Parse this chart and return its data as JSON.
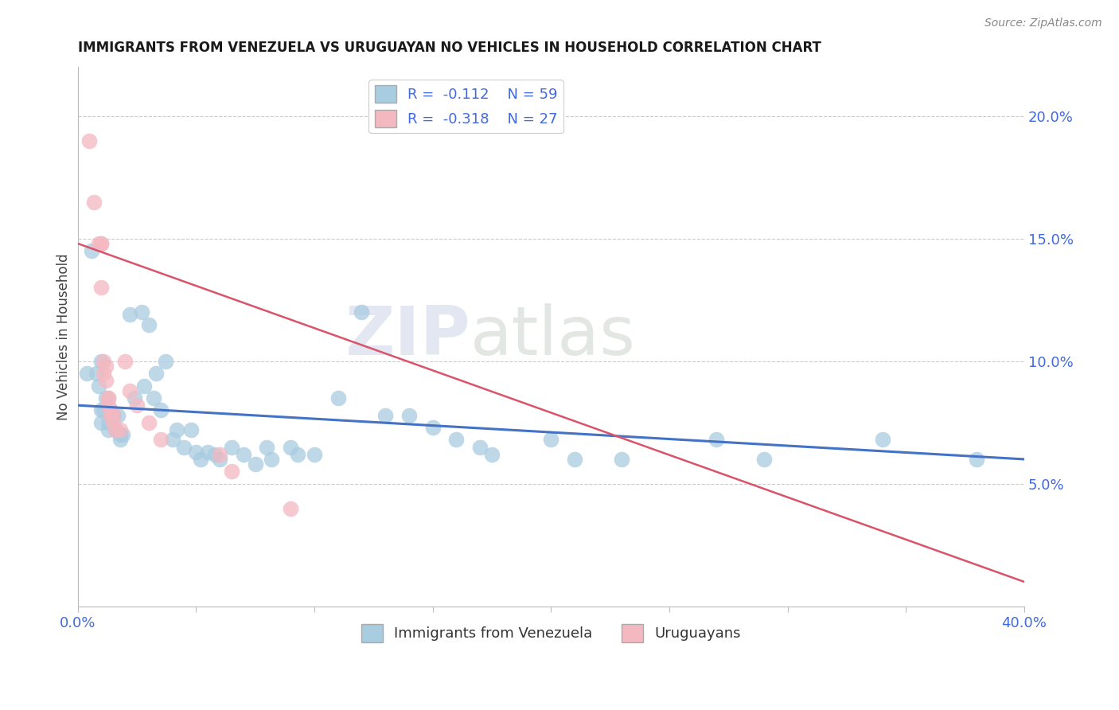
{
  "title": "IMMIGRANTS FROM VENEZUELA VS URUGUAYAN NO VEHICLES IN HOUSEHOLD CORRELATION CHART",
  "source": "Source: ZipAtlas.com",
  "ylabel": "No Vehicles in Household",
  "right_yticks": [
    "5.0%",
    "10.0%",
    "15.0%",
    "20.0%"
  ],
  "right_ytick_vals": [
    0.05,
    0.1,
    0.15,
    0.2
  ],
  "legend1_label": "Immigrants from Venezuela",
  "legend2_label": "Uruguayans",
  "r1": -0.112,
  "n1": 59,
  "r2": -0.318,
  "n2": 27,
  "blue_color": "#a8cce0",
  "pink_color": "#f4b8c1",
  "blue_line_color": "#4472c4",
  "pink_line_color": "#d9536a",
  "title_color": "#1a1a1a",
  "axis_label_color": "#4169e1",
  "watermark_zip": "ZIP",
  "watermark_atlas": "atlas",
  "blue_scatter": [
    [
      0.004,
      0.095
    ],
    [
      0.006,
      0.145
    ],
    [
      0.008,
      0.095
    ],
    [
      0.009,
      0.09
    ],
    [
      0.01,
      0.1
    ],
    [
      0.01,
      0.08
    ],
    [
      0.01,
      0.075
    ],
    [
      0.011,
      0.08
    ],
    [
      0.012,
      0.085
    ],
    [
      0.013,
      0.075
    ],
    [
      0.013,
      0.072
    ],
    [
      0.015,
      0.078
    ],
    [
      0.015,
      0.078
    ],
    [
      0.016,
      0.072
    ],
    [
      0.017,
      0.078
    ],
    [
      0.018,
      0.07
    ],
    [
      0.018,
      0.068
    ],
    [
      0.019,
      0.07
    ],
    [
      0.022,
      0.119
    ],
    [
      0.024,
      0.085
    ],
    [
      0.027,
      0.12
    ],
    [
      0.028,
      0.09
    ],
    [
      0.03,
      0.115
    ],
    [
      0.032,
      0.085
    ],
    [
      0.033,
      0.095
    ],
    [
      0.035,
      0.08
    ],
    [
      0.037,
      0.1
    ],
    [
      0.04,
      0.068
    ],
    [
      0.042,
      0.072
    ],
    [
      0.045,
      0.065
    ],
    [
      0.048,
      0.072
    ],
    [
      0.05,
      0.063
    ],
    [
      0.052,
      0.06
    ],
    [
      0.055,
      0.063
    ],
    [
      0.058,
      0.062
    ],
    [
      0.06,
      0.06
    ],
    [
      0.065,
      0.065
    ],
    [
      0.07,
      0.062
    ],
    [
      0.075,
      0.058
    ],
    [
      0.08,
      0.065
    ],
    [
      0.082,
      0.06
    ],
    [
      0.09,
      0.065
    ],
    [
      0.093,
      0.062
    ],
    [
      0.1,
      0.062
    ],
    [
      0.11,
      0.085
    ],
    [
      0.12,
      0.12
    ],
    [
      0.13,
      0.078
    ],
    [
      0.14,
      0.078
    ],
    [
      0.15,
      0.073
    ],
    [
      0.16,
      0.068
    ],
    [
      0.17,
      0.065
    ],
    [
      0.175,
      0.062
    ],
    [
      0.2,
      0.068
    ],
    [
      0.21,
      0.06
    ],
    [
      0.23,
      0.06
    ],
    [
      0.27,
      0.068
    ],
    [
      0.29,
      0.06
    ],
    [
      0.34,
      0.068
    ],
    [
      0.38,
      0.06
    ]
  ],
  "pink_scatter": [
    [
      0.005,
      0.19
    ],
    [
      0.007,
      0.165
    ],
    [
      0.009,
      0.148
    ],
    [
      0.01,
      0.148
    ],
    [
      0.01,
      0.148
    ],
    [
      0.01,
      0.13
    ],
    [
      0.011,
      0.1
    ],
    [
      0.011,
      0.095
    ],
    [
      0.012,
      0.098
    ],
    [
      0.012,
      0.092
    ],
    [
      0.013,
      0.085
    ],
    [
      0.013,
      0.085
    ],
    [
      0.013,
      0.082
    ],
    [
      0.014,
      0.08
    ],
    [
      0.014,
      0.078
    ],
    [
      0.015,
      0.078
    ],
    [
      0.015,
      0.075
    ],
    [
      0.016,
      0.072
    ],
    [
      0.018,
      0.072
    ],
    [
      0.02,
      0.1
    ],
    [
      0.022,
      0.088
    ],
    [
      0.025,
      0.082
    ],
    [
      0.03,
      0.075
    ],
    [
      0.035,
      0.068
    ],
    [
      0.06,
      0.062
    ],
    [
      0.065,
      0.055
    ],
    [
      0.09,
      0.04
    ]
  ],
  "xlim": [
    0.0,
    0.4
  ],
  "ylim": [
    0.0,
    0.22
  ],
  "blue_line_x": [
    0.0,
    0.4
  ],
  "blue_line_y": [
    0.082,
    0.06
  ],
  "pink_line_x": [
    0.0,
    0.4
  ],
  "pink_line_y": [
    0.148,
    0.01
  ]
}
